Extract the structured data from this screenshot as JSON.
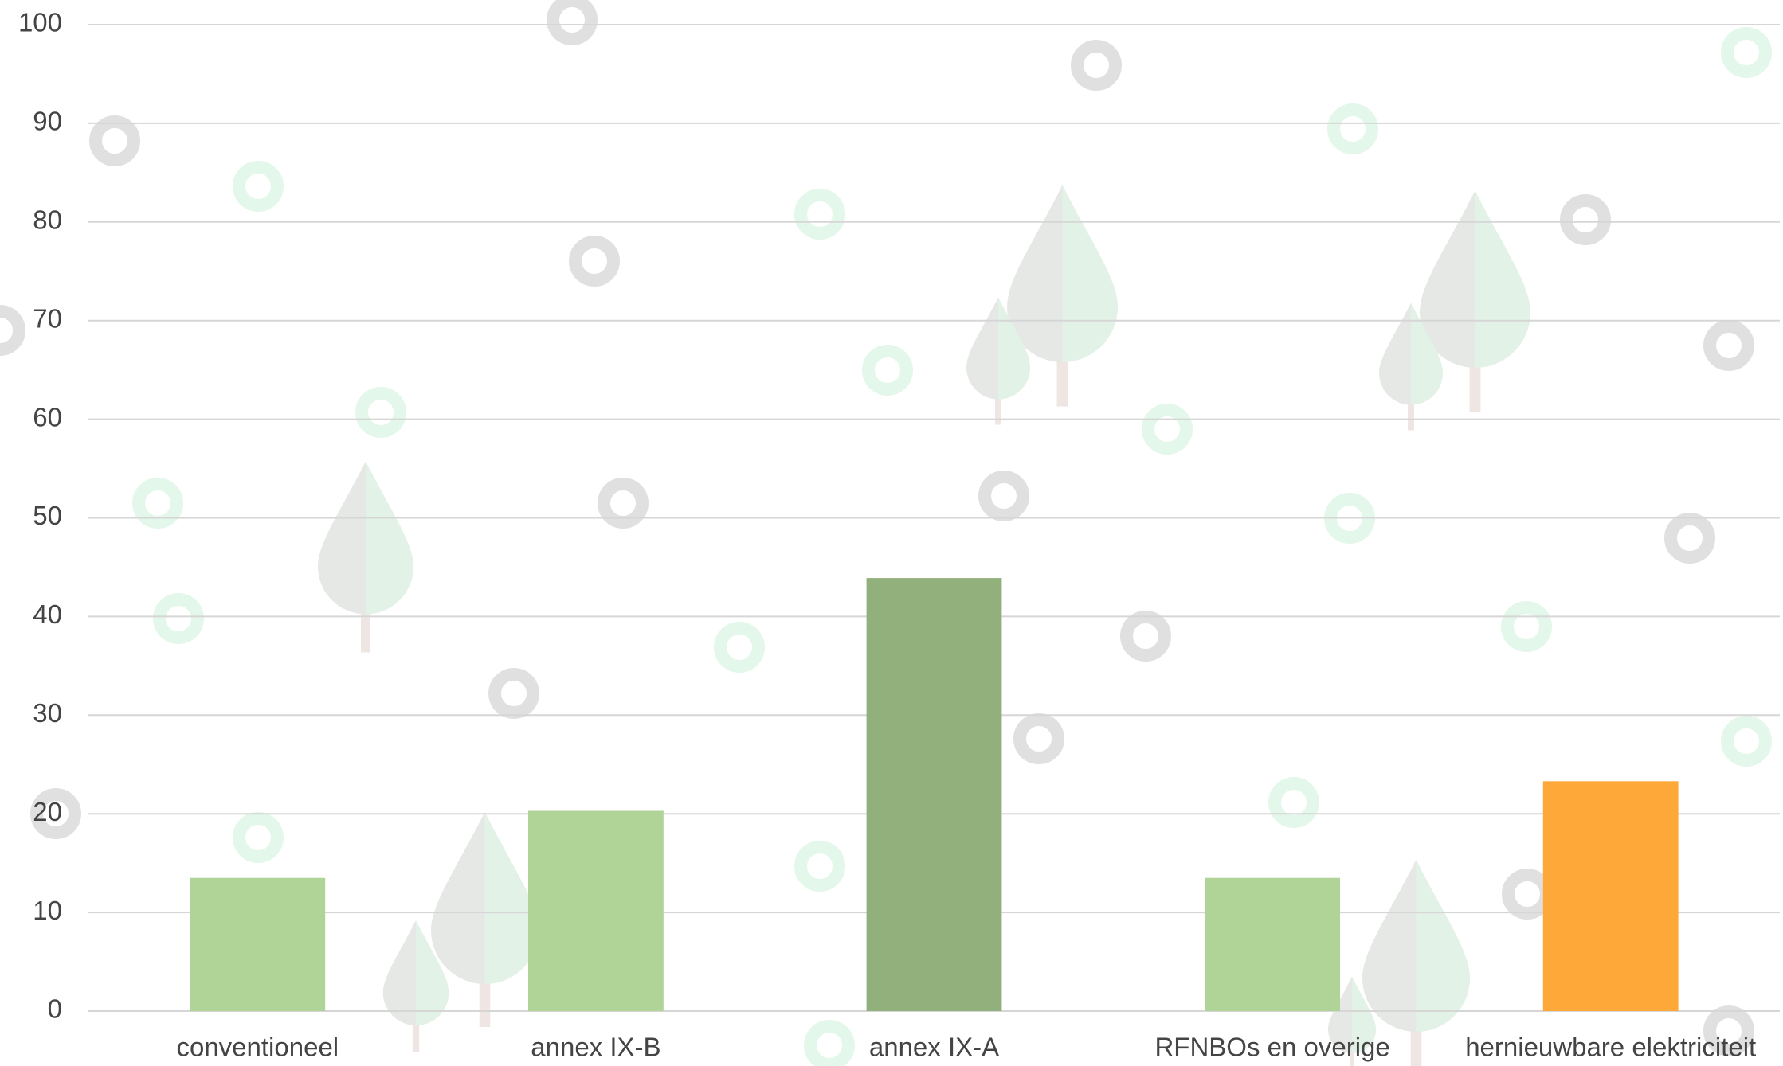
{
  "chart_data": {
    "type": "bar",
    "categories": [
      "conventioneel",
      "annex IX-B",
      "annex IX-A",
      "RFNBOs en overige",
      "hernieuwbare elektriciteit"
    ],
    "values": [
      13.5,
      20.3,
      43.9,
      13.5,
      23.3
    ],
    "colors": [
      "#b0d498",
      "#b0d498",
      "#91b07b",
      "#b0d498",
      "#ffa83a"
    ],
    "ylim": [
      0,
      100
    ],
    "yticks": [
      0,
      10,
      20,
      30,
      40,
      50,
      60,
      70,
      80,
      90,
      100
    ],
    "grid": true
  }
}
